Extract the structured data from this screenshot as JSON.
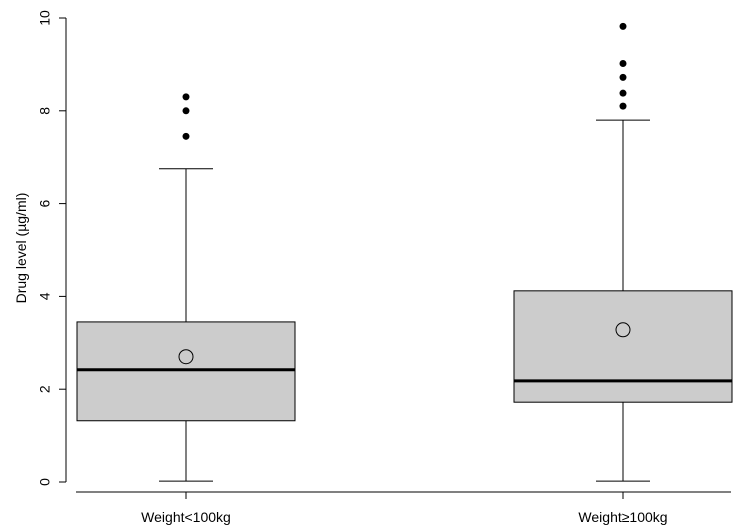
{
  "chart_data": {
    "type": "boxplot",
    "ylabel": "Drug level (µg/ml)",
    "ylim": [
      0,
      10
    ],
    "yticks": [
      0,
      2,
      4,
      6,
      8,
      10
    ],
    "grid": false,
    "categories": [
      "Weight<100kg",
      "Weight≥100kg"
    ],
    "boxes": [
      {
        "category": "Weight<100kg",
        "whisker_low": 0.02,
        "q1": 1.32,
        "median": 2.42,
        "q3": 3.45,
        "whisker_high": 6.75,
        "mean": 2.7,
        "outliers": [
          7.45,
          8.0,
          8.3
        ]
      },
      {
        "category": "Weight≥100kg",
        "whisker_low": 0.02,
        "q1": 1.72,
        "median": 2.18,
        "q3": 4.12,
        "whisker_high": 7.8,
        "mean": 3.28,
        "outliers": [
          8.1,
          8.38,
          8.72,
          9.02,
          9.82
        ]
      }
    ],
    "colors": {
      "box_fill": "#cccccc",
      "stroke": "#000000"
    }
  }
}
